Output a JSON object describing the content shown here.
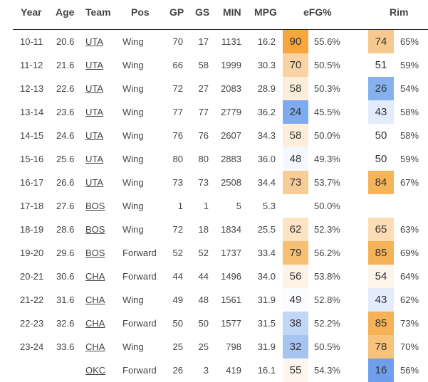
{
  "headers": {
    "year": "Year",
    "age": "Age",
    "team": "Team",
    "pos": "Pos",
    "gp": "GP",
    "gs": "GS",
    "min": "MIN",
    "mpg": "MPG",
    "efg": "eFG%",
    "rim": "Rim"
  },
  "rows": [
    {
      "year": "10-11",
      "age": "20.6",
      "team": "UTA",
      "pos": "Wing",
      "gp": "70",
      "gs": "17",
      "min": "1131",
      "mpg": "16.2",
      "efg_pct": "90",
      "efg_color": "#f5a63c",
      "efg": "55.6%",
      "rim_pct": "74",
      "rim_color": "#f8c98e",
      "rim": "65%"
    },
    {
      "year": "11-12",
      "age": "21.6",
      "team": "UTA",
      "pos": "Wing",
      "gp": "66",
      "gs": "58",
      "min": "1999",
      "mpg": "30.3",
      "efg_pct": "70",
      "efg_color": "#f9d3a3",
      "efg": "50.5%",
      "rim_pct": "51",
      "rim_color": "#ffffff",
      "rim": "59%"
    },
    {
      "year": "12-13",
      "age": "22.6",
      "team": "UTA",
      "pos": "Wing",
      "gp": "72",
      "gs": "27",
      "min": "2083",
      "mpg": "28.9",
      "efg_pct": "58",
      "efg_color": "#fdeedb",
      "efg": "50.3%",
      "rim_pct": "26",
      "rim_color": "#85b2ee",
      "rim": "54%"
    },
    {
      "year": "13-14",
      "age": "23.6",
      "team": "UTA",
      "pos": "Wing",
      "gp": "77",
      "gs": "77",
      "min": "2779",
      "mpg": "36.2",
      "efg_pct": "24",
      "efg_color": "#7eaaee",
      "efg": "45.5%",
      "rim_pct": "43",
      "rim_color": "#e2ecfb",
      "rim": "58%"
    },
    {
      "year": "14-15",
      "age": "24.6",
      "team": "UTA",
      "pos": "Wing",
      "gp": "76",
      "gs": "76",
      "min": "2607",
      "mpg": "34.3",
      "efg_pct": "58",
      "efg_color": "#fdeedb",
      "efg": "50.0%",
      "rim_pct": "50",
      "rim_color": "#ffffff",
      "rim": "58%"
    },
    {
      "year": "15-16",
      "age": "25.6",
      "team": "UTA",
      "pos": "Wing",
      "gp": "80",
      "gs": "80",
      "min": "2883",
      "mpg": "36.0",
      "efg_pct": "48",
      "efg_color": "#f4f8fe",
      "efg": "49.3%",
      "rim_pct": "50",
      "rim_color": "#ffffff",
      "rim": "59%"
    },
    {
      "year": "16-17",
      "age": "26.6",
      "team": "UTA",
      "pos": "Wing",
      "gp": "73",
      "gs": "73",
      "min": "2508",
      "mpg": "34.4",
      "efg_pct": "73",
      "efg_color": "#f8cc96",
      "efg": "53.7%",
      "rim_pct": "84",
      "rim_color": "#f6b358",
      "rim": "67%"
    },
    {
      "year": "17-18",
      "age": "27.6",
      "team": "BOS",
      "pos": "Wing",
      "gp": "1",
      "gs": "1",
      "min": "5",
      "mpg": "5.3",
      "efg_pct": "",
      "efg_color": "#ffffff",
      "efg": "50.0%",
      "rim_pct": "",
      "rim_color": "#ffffff",
      "rim": ""
    },
    {
      "year": "18-19",
      "age": "28.6",
      "team": "BOS",
      "pos": "Wing",
      "gp": "72",
      "gs": "18",
      "min": "1834",
      "mpg": "25.5",
      "efg_pct": "62",
      "efg_color": "#fbe3c3",
      "efg": "52.3%",
      "rim_pct": "65",
      "rim_color": "#fbdcb4",
      "rim": "63%"
    },
    {
      "year": "19-20",
      "age": "29.6",
      "team": "BOS",
      "pos": "Forward",
      "gp": "52",
      "gs": "52",
      "min": "1737",
      "mpg": "33.4",
      "efg_pct": "79",
      "efg_color": "#f7bf72",
      "efg": "56.2%",
      "rim_pct": "85",
      "rim_color": "#f6b257",
      "rim": "69%"
    },
    {
      "year": "20-21",
      "age": "30.6",
      "team": "CHA",
      "pos": "Forward",
      "gp": "44",
      "gs": "44",
      "min": "1496",
      "mpg": "34.0",
      "efg_pct": "56",
      "efg_color": "#fef3e6",
      "efg": "53.8%",
      "rim_pct": "54",
      "rim_color": "#fef5ea",
      "rim": "64%"
    },
    {
      "year": "21-22",
      "age": "31.6",
      "team": "CHA",
      "pos": "Wing",
      "gp": "49",
      "gs": "48",
      "min": "1561",
      "mpg": "31.9",
      "efg_pct": "49",
      "efg_color": "#fbfcff",
      "efg": "52.8%",
      "rim_pct": "43",
      "rim_color": "#e2ecfb",
      "rim": "62%"
    },
    {
      "year": "22-23",
      "age": "32.6",
      "team": "CHA",
      "pos": "Forward",
      "gp": "50",
      "gs": "50",
      "min": "1577",
      "mpg": "31.5",
      "efg_pct": "38",
      "efg_color": "#c2d6f6",
      "efg": "52.2%",
      "rim_pct": "85",
      "rim_color": "#f6b257",
      "rim": "73%"
    },
    {
      "year": "23-24",
      "age": "33.6",
      "team": "CHA",
      "pos": "Wing",
      "gp": "25",
      "gs": "25",
      "min": "798",
      "mpg": "31.9",
      "efg_pct": "32",
      "efg_color": "#a6c3f2",
      "efg": "50.5%",
      "rim_pct": "78",
      "rim_color": "#f7c27a",
      "rim": "70%"
    },
    {
      "year": "",
      "age": "",
      "team": "OKC",
      "pos": "Forward",
      "gp": "26",
      "gs": "3",
      "min": "419",
      "mpg": "16.1",
      "efg_pct": "55",
      "efg_color": "#fef6ec",
      "efg": "54.3%",
      "rim_pct": "16",
      "rim_color": "#6f9fec",
      "rim": "56%"
    }
  ]
}
